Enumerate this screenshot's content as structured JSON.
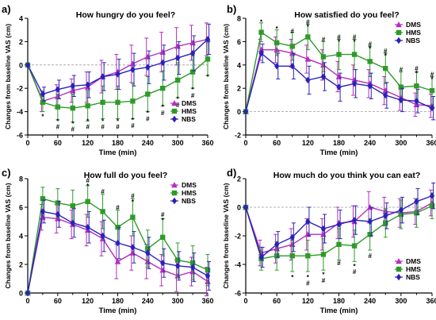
{
  "colors": {
    "DMS": "#b12fbd",
    "HMS": "#2f9a2a",
    "NBS": "#2a22b8"
  },
  "markers": {
    "DMS": "triangle",
    "HMS": "square",
    "NBS": "diamond"
  },
  "chart_data": [
    {
      "type": "line",
      "panel_label": "a)",
      "title": "How hungry do you feel?",
      "xlabel": "Time (min)",
      "ylabel": "Changes from baseline VAS (cm)",
      "x": [
        0,
        30,
        60,
        90,
        120,
        150,
        180,
        210,
        240,
        270,
        300,
        330,
        360
      ],
      "xticks": [
        0,
        60,
        120,
        180,
        240,
        300,
        360
      ],
      "xlim": [
        0,
        360
      ],
      "ylim": [
        -6,
        4
      ],
      "yticks": [
        -6,
        -4,
        -2,
        0,
        2,
        4
      ],
      "zero_line": true,
      "legend_position": "bottom-right",
      "series": [
        {
          "name": "DMS",
          "values": [
            0,
            -3.1,
            -2.7,
            -2.2,
            -1.9,
            -1.0,
            -0.6,
            0.1,
            0.7,
            1.1,
            1.6,
            1.9,
            2.2
          ],
          "errors": [
            0,
            0.9,
            1.0,
            1.0,
            1.3,
            1.4,
            1.5,
            1.6,
            1.6,
            1.7,
            1.6,
            1.5,
            1.4
          ]
        },
        {
          "name": "HMS",
          "values": [
            0,
            -3.2,
            -3.6,
            -3.7,
            -3.5,
            -3.2,
            -3.2,
            -3.1,
            -2.5,
            -2.0,
            -1.3,
            -0.6,
            0.5
          ],
          "errors": [
            0,
            0.8,
            1.1,
            1.2,
            1.3,
            1.4,
            1.4,
            1.5,
            1.5,
            1.5,
            1.5,
            1.4,
            1.4
          ]
        },
        {
          "name": "NBS",
          "values": [
            0,
            -2.5,
            -2.1,
            -1.8,
            -1.7,
            -1.0,
            -0.8,
            -0.4,
            -0.2,
            0.2,
            0.6,
            1.0,
            2.2
          ],
          "errors": [
            0,
            0.6,
            0.8,
            0.9,
            1.1,
            1.2,
            1.3,
            1.4,
            1.4,
            1.5,
            1.4,
            1.5,
            1.3
          ]
        }
      ],
      "annotations": [
        {
          "x": 30,
          "y": -4.4,
          "text": "*"
        },
        {
          "x": 60,
          "y": -4.8,
          "text": "*"
        },
        {
          "x": 60,
          "y": -5.3,
          "text": "#"
        },
        {
          "x": 90,
          "y": -5.0,
          "text": "*"
        },
        {
          "x": 90,
          "y": -5.5,
          "text": "#"
        },
        {
          "x": 120,
          "y": -4.8,
          "text": "*"
        },
        {
          "x": 120,
          "y": -5.3,
          "text": "#"
        },
        {
          "x": 150,
          "y": -4.8,
          "text": "*"
        },
        {
          "x": 150,
          "y": -5.3,
          "text": "#"
        },
        {
          "x": 180,
          "y": -4.8,
          "text": "*"
        },
        {
          "x": 180,
          "y": -5.3,
          "text": "#"
        },
        {
          "x": 210,
          "y": -4.7,
          "text": "*"
        },
        {
          "x": 210,
          "y": -5.2,
          "text": "#"
        },
        {
          "x": 240,
          "y": -4.1,
          "text": "*"
        },
        {
          "x": 240,
          "y": -4.6,
          "text": "#"
        },
        {
          "x": 270,
          "y": -3.6,
          "text": "*"
        },
        {
          "x": 270,
          "y": -4.1,
          "text": "#"
        },
        {
          "x": 300,
          "y": -2.9,
          "text": "*"
        },
        {
          "x": 300,
          "y": -3.4,
          "text": "#"
        },
        {
          "x": 330,
          "y": -2.1,
          "text": "*"
        },
        {
          "x": 330,
          "y": -2.6,
          "text": "#"
        },
        {
          "x": 360,
          "y": -1.0,
          "text": "*"
        }
      ]
    },
    {
      "type": "line",
      "panel_label": "b)",
      "title": "How satisfied do you feel?",
      "xlabel": "Time (min)",
      "ylabel": "Changes from baseline VAS (cm)",
      "x": [
        0,
        30,
        60,
        90,
        120,
        150,
        180,
        210,
        240,
        270,
        300,
        330,
        360
      ],
      "xticks": [
        0,
        60,
        120,
        180,
        240,
        300,
        360
      ],
      "xlim": [
        0,
        360
      ],
      "ylim": [
        -2,
        8
      ],
      "yticks": [
        -2,
        0,
        2,
        4,
        6,
        8
      ],
      "zero_line": true,
      "legend_position": "top-right",
      "series": [
        {
          "name": "DMS",
          "values": [
            0,
            5.3,
            5.3,
            5.0,
            4.5,
            4.0,
            3.0,
            2.7,
            2.4,
            1.8,
            1.2,
            0.6,
            0.5
          ],
          "errors": [
            0,
            0.9,
            1.1,
            1.2,
            1.2,
            1.3,
            1.3,
            1.3,
            1.2,
            1.2,
            1.1,
            1.0,
            1.0
          ]
        },
        {
          "name": "HMS",
          "values": [
            0,
            6.8,
            5.9,
            5.6,
            6.4,
            4.7,
            4.9,
            4.9,
            4.3,
            3.7,
            2.1,
            2.2,
            1.8
          ],
          "errors": [
            0,
            0.8,
            1.1,
            1.2,
            1.1,
            1.3,
            1.3,
            1.3,
            1.3,
            1.3,
            1.3,
            1.2,
            1.2
          ]
        },
        {
          "name": "NBS",
          "values": [
            0,
            5.0,
            3.9,
            3.9,
            2.7,
            3.0,
            2.1,
            2.4,
            2.2,
            1.4,
            1.0,
            0.9,
            0.3
          ],
          "errors": [
            0,
            0.8,
            1.1,
            1.1,
            1.2,
            1.2,
            1.2,
            1.2,
            1.1,
            1.1,
            1.0,
            1.0,
            1.0
          ]
        }
      ],
      "annotations": [
        {
          "x": 30,
          "y": 7.7,
          "text": "*"
        },
        {
          "x": 60,
          "y": 7.1,
          "text": "*"
        },
        {
          "x": 90,
          "y": 6.9,
          "text": "#"
        },
        {
          "x": 120,
          "y": 7.7,
          "text": "#"
        },
        {
          "x": 120,
          "y": 7.3,
          "text": "*"
        },
        {
          "x": 150,
          "y": 6.2,
          "text": "#"
        },
        {
          "x": 180,
          "y": 6.4,
          "text": "#"
        },
        {
          "x": 180,
          "y": 6.0,
          "text": "*"
        },
        {
          "x": 210,
          "y": 6.4,
          "text": "#"
        },
        {
          "x": 210,
          "y": 6.0,
          "text": "*"
        },
        {
          "x": 240,
          "y": 5.8,
          "text": "#"
        },
        {
          "x": 240,
          "y": 5.4,
          "text": "*"
        },
        {
          "x": 270,
          "y": 5.2,
          "text": "#"
        },
        {
          "x": 270,
          "y": 4.8,
          "text": "*"
        },
        {
          "x": 300,
          "y": 3.6,
          "text": "#"
        },
        {
          "x": 330,
          "y": 3.7,
          "text": "#"
        },
        {
          "x": 330,
          "y": 3.3,
          "text": "*"
        },
        {
          "x": 360,
          "y": 3.2,
          "text": "#"
        },
        {
          "x": 360,
          "y": 2.8,
          "text": "*"
        }
      ]
    },
    {
      "type": "line",
      "panel_label": "c)",
      "title": "How full do you feel?",
      "xlabel": "Time (min)",
      "ylabel": "Changes from baseline VAS (cm)",
      "x": [
        0,
        30,
        60,
        90,
        120,
        150,
        180,
        210,
        240,
        270,
        300,
        330,
        360
      ],
      "xticks": [
        0,
        60,
        120,
        180,
        240,
        300,
        360
      ],
      "xlim": [
        0,
        360
      ],
      "ylim": [
        0,
        8
      ],
      "yticks": [
        0,
        2,
        4,
        6,
        8
      ],
      "zero_line": false,
      "legend_position": "top-right",
      "series": [
        {
          "name": "DMS",
          "values": [
            0,
            5.3,
            5.2,
            4.8,
            4.4,
            3.8,
            2.2,
            2.8,
            2.2,
            1.6,
            1.2,
            1.5,
            0.8
          ],
          "errors": [
            0,
            0.9,
            1.0,
            1.0,
            1.1,
            1.2,
            1.2,
            1.2,
            1.2,
            1.1,
            1.1,
            1.0,
            1.0
          ]
        },
        {
          "name": "HMS",
          "values": [
            0,
            6.6,
            6.3,
            6.1,
            6.4,
            5.7,
            4.6,
            5.3,
            3.1,
            3.9,
            2.3,
            2.1,
            1.6
          ],
          "errors": [
            0,
            0.8,
            1.0,
            1.1,
            1.1,
            1.2,
            1.2,
            1.3,
            1.3,
            1.3,
            1.2,
            1.2,
            1.1
          ]
        },
        {
          "name": "NBS",
          "values": [
            0,
            5.7,
            5.5,
            4.9,
            4.6,
            4.0,
            3.5,
            3.2,
            2.8,
            2.1,
            1.9,
            1.8,
            1.2
          ],
          "errors": [
            0,
            0.8,
            0.9,
            1.0,
            1.1,
            1.1,
            1.1,
            1.1,
            1.1,
            1.0,
            1.0,
            1.0,
            1.0
          ]
        }
      ],
      "annotations": [
        {
          "x": 120,
          "y": 7.9,
          "text": "#"
        },
        {
          "x": 120,
          "y": 7.5,
          "text": "*"
        },
        {
          "x": 150,
          "y": 7.1,
          "text": "#"
        },
        {
          "x": 180,
          "y": 6.0,
          "text": "#"
        },
        {
          "x": 210,
          "y": 6.8,
          "text": "#"
        },
        {
          "x": 210,
          "y": 6.4,
          "text": "*"
        },
        {
          "x": 270,
          "y": 5.5,
          "text": "#"
        },
        {
          "x": 270,
          "y": 5.1,
          "text": "*"
        }
      ]
    },
    {
      "type": "line",
      "panel_label": "d)",
      "title": "How much do you think you can eat?",
      "xlabel": "Time (min)",
      "ylabel": "Changes from baseline VAS (cm)",
      "x": [
        0,
        30,
        60,
        90,
        120,
        150,
        180,
        210,
        240,
        270,
        300,
        330,
        360
      ],
      "xticks": [
        0,
        60,
        120,
        180,
        240,
        300,
        360
      ],
      "xlim": [
        0,
        360
      ],
      "ylim": [
        -6,
        2
      ],
      "yticks": [
        -6,
        -4,
        -2,
        0,
        2
      ],
      "zero_line": true,
      "legend_position": "bottom-right",
      "series": [
        {
          "name": "DMS",
          "values": [
            0,
            -3.2,
            -2.9,
            -2.6,
            -1.9,
            -1.9,
            -1.1,
            -1.0,
            0.0,
            -0.3,
            -0.4,
            -0.3,
            0.3
          ],
          "errors": [
            0,
            0.9,
            1.0,
            1.1,
            1.1,
            1.1,
            1.1,
            1.1,
            1.1,
            1.0,
            1.0,
            0.9,
            0.9
          ]
        },
        {
          "name": "HMS",
          "values": [
            0,
            -3.6,
            -3.4,
            -3.4,
            -3.4,
            -3.3,
            -2.6,
            -2.7,
            -1.9,
            -1.1,
            -0.5,
            -0.4,
            0.1
          ],
          "errors": [
            0,
            0.8,
            1.0,
            1.1,
            1.1,
            1.1,
            1.1,
            1.1,
            1.1,
            1.0,
            1.0,
            1.0,
            0.9
          ]
        },
        {
          "name": "NBS",
          "values": [
            0,
            -3.5,
            -2.6,
            -2.1,
            -1.0,
            -1.5,
            -1.2,
            -0.9,
            -1.0,
            -0.6,
            -0.2,
            0.4,
            0.8
          ],
          "errors": [
            0,
            0.7,
            0.9,
            1.0,
            1.0,
            1.0,
            1.0,
            1.0,
            1.0,
            0.9,
            0.9,
            0.9,
            0.9
          ]
        }
      ],
      "annotations": [
        {
          "x": 90,
          "y": -4.9,
          "text": "*"
        },
        {
          "x": 120,
          "y": -4.9,
          "text": "*"
        },
        {
          "x": 120,
          "y": -5.3,
          "text": "#"
        },
        {
          "x": 150,
          "y": -4.7,
          "text": "*"
        },
        {
          "x": 150,
          "y": -5.1,
          "text": "#"
        },
        {
          "x": 180,
          "y": -3.9,
          "text": "#"
        },
        {
          "x": 210,
          "y": -4.1,
          "text": "*"
        },
        {
          "x": 210,
          "y": -4.5,
          "text": "#"
        },
        {
          "x": 240,
          "y": -3.4,
          "text": "#"
        }
      ]
    }
  ]
}
